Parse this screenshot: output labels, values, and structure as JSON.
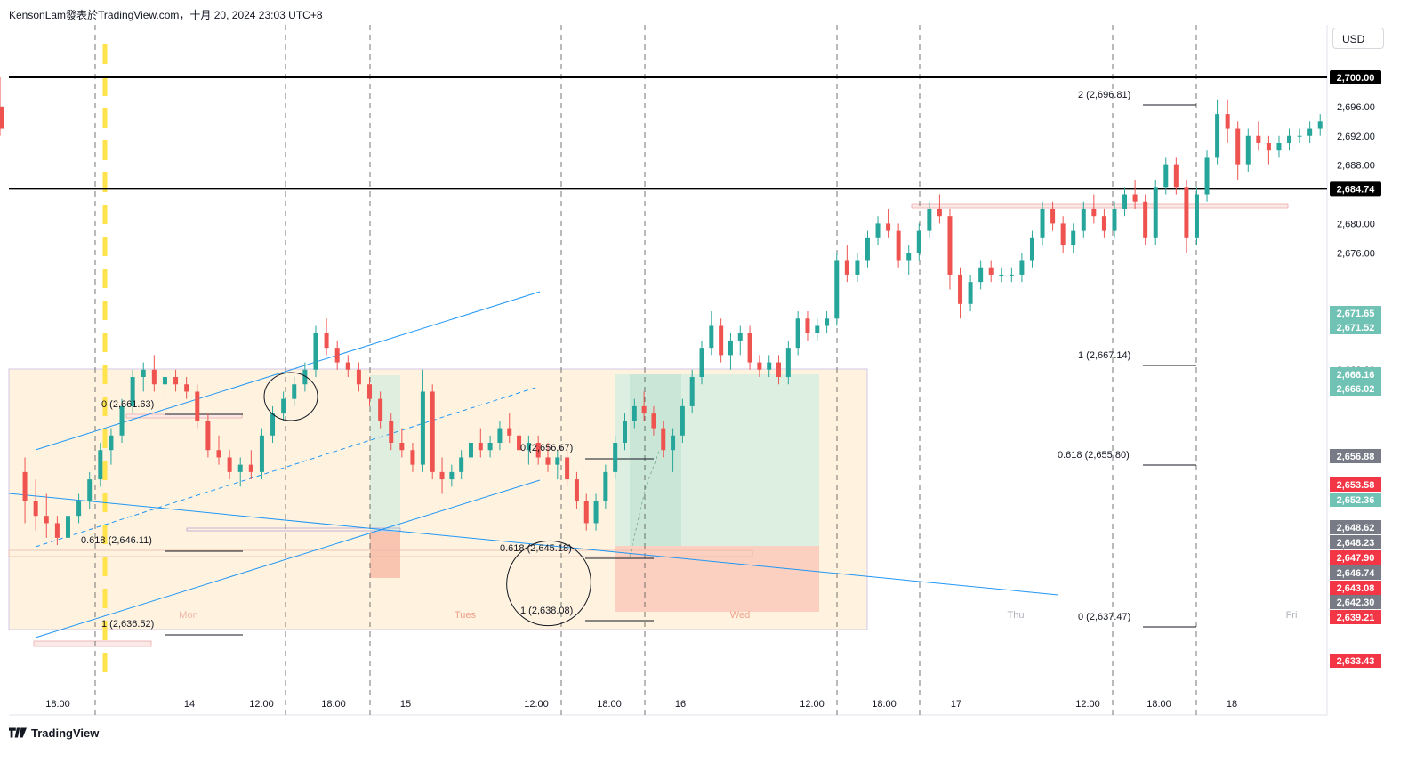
{
  "header": {
    "title": "KensonLam發表於TradingView.com，十月 20, 2024 23:03 UTC+8"
  },
  "toolbar": {
    "currency_label": "USD"
  },
  "footer": {
    "brand": "TradingView",
    "logo_icon": "tradingview-logo-icon"
  },
  "colors": {
    "up": "#26a69a",
    "down": "#ef5350",
    "trendline": "#2196f3",
    "box_fill": "#fff3e0",
    "profit_zone": "#dcefe0",
    "loss_zone": "#fbd0c0",
    "highlight_yellow": "#ffe34d",
    "grid_dash": "#555555"
  },
  "chart_data": {
    "type": "candlestick",
    "symbol_quote": "USD",
    "y_range": [
      2630,
      2702
    ],
    "y_ticks": [
      "2,696.00",
      "2,692.00",
      "2,688.00",
      "2,680.00",
      "2,676.00",
      "2,668.00",
      "2,660.00",
      "2,636.00",
      "2,632.00"
    ],
    "y_tick_values": [
      2696,
      2692,
      2688,
      2680,
      2676,
      2668,
      2660,
      2636,
      2632
    ],
    "x_ticks": [
      "18:00",
      "14",
      "12:00",
      "18:00",
      "15",
      "12:00",
      "18:00",
      "16",
      "12:00",
      "18:00",
      "17",
      "12:00",
      "18:00",
      "18"
    ],
    "day_labels": [
      {
        "text": "Mon",
        "color": "#f0b8a8"
      },
      {
        "text": "Tues",
        "color": "#f0a08a"
      },
      {
        "text": "Wed",
        "color": "#f0a08a"
      },
      {
        "text": "Thu",
        "color": "#b0b3bc"
      },
      {
        "text": "Fri",
        "color": "#b0b3bc"
      }
    ],
    "horizontal_levels": [
      {
        "label": "2,700.00",
        "value": 2700.0,
        "color": "#000000"
      },
      {
        "label": "2,684.74",
        "value": 2684.74,
        "color": "#000000"
      }
    ],
    "price_badges": [
      {
        "label": "2,671.65",
        "value": 2671.65,
        "color": "#70c2b4"
      },
      {
        "label": "2,671.52",
        "value": 2671.52,
        "color": "#70c2b4"
      },
      {
        "label": "2,666.16",
        "value": 2666.16,
        "color": "#70c2b4"
      },
      {
        "label": "2,666.02",
        "value": 2666.02,
        "color": "#70c2b4"
      },
      {
        "label": "2,656.88",
        "value": 2656.88,
        "color": "#787b86"
      },
      {
        "label": "2,653.58",
        "value": 2653.58,
        "color": "#f23645"
      },
      {
        "label": "2,652.36",
        "value": 2652.36,
        "color": "#70c2b4"
      },
      {
        "label": "2,648.62",
        "value": 2648.62,
        "color": "#787b86"
      },
      {
        "label": "2,648.23",
        "value": 2648.23,
        "color": "#787b86"
      },
      {
        "label": "2,647.90",
        "value": 2647.9,
        "color": "#f23645"
      },
      {
        "label": "2,646.74",
        "value": 2646.74,
        "color": "#787b86"
      },
      {
        "label": "2,643.08",
        "value": 2643.08,
        "color": "#f23645"
      },
      {
        "label": "2,642.30",
        "value": 2642.3,
        "color": "#787b86"
      },
      {
        "label": "2,639.21",
        "value": 2639.21,
        "color": "#f23645"
      },
      {
        "label": "2,633.43",
        "value": 2633.43,
        "color": "#f23645"
      }
    ],
    "fib_labels": [
      {
        "text": "0 (2,661.63)",
        "value": 2661.63
      },
      {
        "text": "0.618 (2,646.11)",
        "value": 2646.11
      },
      {
        "text": "1 (2,636.52)",
        "value": 2636.52
      },
      {
        "text": "0 (2,656.67)",
        "value": 2656.67
      },
      {
        "text": "0.618 (2,645.18)",
        "value": 2645.18
      },
      {
        "text": "1 (2,638.08)",
        "value": 2638.08
      },
      {
        "text": "2 (2,696.81)",
        "value": 2696.81
      },
      {
        "text": "1 (2,667.14)",
        "value": 2667.14
      },
      {
        "text": "0.618 (2,655.80)",
        "value": 2655.8
      },
      {
        "text": "0 (2,637.47)",
        "value": 2637.47
      }
    ],
    "candles": [
      [
        2646,
        2648,
        2639,
        2642
      ],
      [
        2642,
        2645,
        2638,
        2640
      ],
      [
        2640,
        2643,
        2637,
        2639
      ],
      [
        2639,
        2640,
        2636,
        2637
      ],
      [
        2637,
        2641,
        2636,
        2640
      ],
      [
        2640,
        2643,
        2639,
        2642
      ],
      [
        2642,
        2646,
        2641,
        2645
      ],
      [
        2645,
        2650,
        2644,
        2649
      ],
      [
        2649,
        2652,
        2647,
        2651
      ],
      [
        2651,
        2656,
        2650,
        2655
      ],
      [
        2655,
        2660,
        2654,
        2659
      ],
      [
        2659,
        2661,
        2657,
        2660
      ],
      [
        2660,
        2662,
        2657,
        2658
      ],
      [
        2658,
        2660,
        2656,
        2659
      ],
      [
        2659,
        2660,
        2657,
        2658
      ],
      [
        2658,
        2659,
        2656,
        2657
      ],
      [
        2657,
        2658,
        2652,
        2653
      ],
      [
        2653,
        2654,
        2648,
        2649
      ],
      [
        2649,
        2651,
        2647,
        2648
      ],
      [
        2648,
        2649,
        2645,
        2646
      ],
      [
        2646,
        2648,
        2644,
        2647
      ],
      [
        2647,
        2649,
        2645,
        2646
      ],
      [
        2646,
        2652,
        2645,
        2651
      ],
      [
        2651,
        2655,
        2650,
        2654
      ],
      [
        2654,
        2657,
        2653,
        2656
      ],
      [
        2656,
        2659,
        2655,
        2658
      ],
      [
        2658,
        2661,
        2657,
        2660
      ],
      [
        2660,
        2666,
        2659,
        2665
      ],
      [
        2665,
        2667,
        2662,
        2663
      ],
      [
        2663,
        2664,
        2660,
        2661
      ],
      [
        2661,
        2662,
        2659,
        2660
      ],
      [
        2660,
        2661,
        2657,
        2658
      ],
      [
        2658,
        2659,
        2655,
        2656
      ],
      [
        2656,
        2657,
        2652,
        2653
      ],
      [
        2653,
        2654,
        2649,
        2650
      ],
      [
        2650,
        2652,
        2648,
        2649
      ],
      [
        2649,
        2650,
        2646,
        2647
      ],
      [
        2647,
        2660,
        2646,
        2657
      ],
      [
        2657,
        2658,
        2645,
        2646
      ],
      [
        2646,
        2648,
        2643,
        2645
      ],
      [
        2645,
        2647,
        2644,
        2646
      ],
      [
        2646,
        2649,
        2645,
        2648
      ],
      [
        2648,
        2651,
        2647,
        2650
      ],
      [
        2650,
        2652,
        2648,
        2649
      ],
      [
        2649,
        2651,
        2648,
        2650
      ],
      [
        2650,
        2653,
        2649,
        2652
      ],
      [
        2652,
        2654,
        2650,
        2651
      ],
      [
        2651,
        2652,
        2648,
        2649
      ],
      [
        2649,
        2651,
        2647,
        2650
      ],
      [
        2650,
        2651,
        2647,
        2648
      ],
      [
        2648,
        2650,
        2646,
        2647
      ],
      [
        2647,
        2649,
        2645,
        2648
      ],
      [
        2648,
        2649,
        2644,
        2645
      ],
      [
        2645,
        2646,
        2641,
        2642
      ],
      [
        2642,
        2643,
        2638,
        2639
      ],
      [
        2639,
        2643,
        2638,
        2642
      ],
      [
        2642,
        2647,
        2641,
        2646
      ],
      [
        2646,
        2651,
        2645,
        2650
      ],
      [
        2650,
        2654,
        2649,
        2653
      ],
      [
        2653,
        2656,
        2652,
        2655
      ],
      [
        2655,
        2657,
        2653,
        2654
      ],
      [
        2654,
        2655,
        2651,
        2652
      ],
      [
        2652,
        2653,
        2648,
        2649
      ],
      [
        2649,
        2652,
        2646,
        2651
      ],
      [
        2651,
        2656,
        2650,
        2655
      ],
      [
        2655,
        2660,
        2654,
        2659
      ],
      [
        2659,
        2664,
        2658,
        2663
      ],
      [
        2663,
        2668,
        2662,
        2666
      ],
      [
        2666,
        2667,
        2661,
        2662
      ],
      [
        2662,
        2665,
        2660,
        2664
      ],
      [
        2664,
        2666,
        2662,
        2665
      ],
      [
        2665,
        2666,
        2660,
        2661
      ],
      [
        2661,
        2662,
        2659,
        2660
      ],
      [
        2660,
        2662,
        2659,
        2661
      ],
      [
        2661,
        2662,
        2658,
        2659
      ],
      [
        2659,
        2664,
        2658,
        2663
      ],
      [
        2663,
        2668,
        2662,
        2667
      ],
      [
        2667,
        2668,
        2664,
        2665
      ],
      [
        2665,
        2667,
        2664,
        2666
      ],
      [
        2666,
        2668,
        2665,
        2667
      ],
      [
        2667,
        2676,
        2666,
        2675
      ],
      [
        2675,
        2677,
        2672,
        2673
      ],
      [
        2673,
        2676,
        2672,
        2675
      ],
      [
        2675,
        2679,
        2674,
        2678
      ],
      [
        2678,
        2681,
        2677,
        2680
      ],
      [
        2680,
        2682,
        2678,
        2679
      ],
      [
        2679,
        2680,
        2674,
        2675
      ],
      [
        2675,
        2677,
        2673,
        2676
      ],
      [
        2676,
        2680,
        2675,
        2679
      ],
      [
        2679,
        2683,
        2678,
        2682
      ],
      [
        2682,
        2684,
        2680,
        2681
      ],
      [
        2681,
        2682,
        2671,
        2673
      ],
      [
        2673,
        2674,
        2667,
        2669
      ],
      [
        2669,
        2673,
        2668,
        2672
      ],
      [
        2672,
        2675,
        2671,
        2674
      ],
      [
        2674,
        2675,
        2672,
        2673
      ],
      [
        2673,
        2674,
        2672,
        2673
      ],
      [
        2673,
        2674,
        2672,
        2673
      ],
      [
        2673,
        2676,
        2672,
        2675
      ],
      [
        2675,
        2679,
        2674,
        2678
      ],
      [
        2678,
        2683,
        2677,
        2682
      ],
      [
        2682,
        2683,
        2679,
        2680
      ],
      [
        2680,
        2681,
        2676,
        2677
      ],
      [
        2677,
        2680,
        2676,
        2679
      ],
      [
        2679,
        2683,
        2678,
        2682
      ],
      [
        2682,
        2684,
        2680,
        2681
      ],
      [
        2681,
        2682,
        2678,
        2679
      ],
      [
        2679,
        2683,
        2678,
        2682
      ],
      [
        2682,
        2685,
        2681,
        2684
      ],
      [
        2684,
        2686,
        2682,
        2683
      ],
      [
        2683,
        2684,
        2677,
        2678
      ],
      [
        2678,
        2686,
        2677,
        2685
      ],
      [
        2685,
        2689,
        2684,
        2688
      ],
      [
        2688,
        2689,
        2684,
        2685
      ],
      [
        2685,
        2686,
        2676,
        2678
      ],
      [
        2678,
        2685,
        2677,
        2684
      ],
      [
        2684,
        2690,
        2683,
        2689
      ],
      [
        2689,
        2697,
        2688,
        2695
      ],
      [
        2695,
        2697,
        2691,
        2693
      ],
      [
        2693,
        2694,
        2686,
        2688
      ],
      [
        2688,
        2693,
        2687,
        2692
      ],
      [
        2692,
        2694,
        2690,
        2691
      ],
      [
        2691,
        2692,
        2688,
        2690
      ],
      [
        2690,
        2692,
        2689,
        2691
      ],
      [
        2691,
        2693,
        2690,
        2692
      ],
      [
        2692,
        2693,
        2691,
        2692
      ],
      [
        2692,
        2694,
        2691,
        2693
      ],
      [
        2693,
        2695,
        2692,
        2694
      ],
      [
        2694,
        2697,
        2693,
        2696
      ],
      [
        2696,
        2700,
        2692,
        2693
      ]
    ]
  }
}
